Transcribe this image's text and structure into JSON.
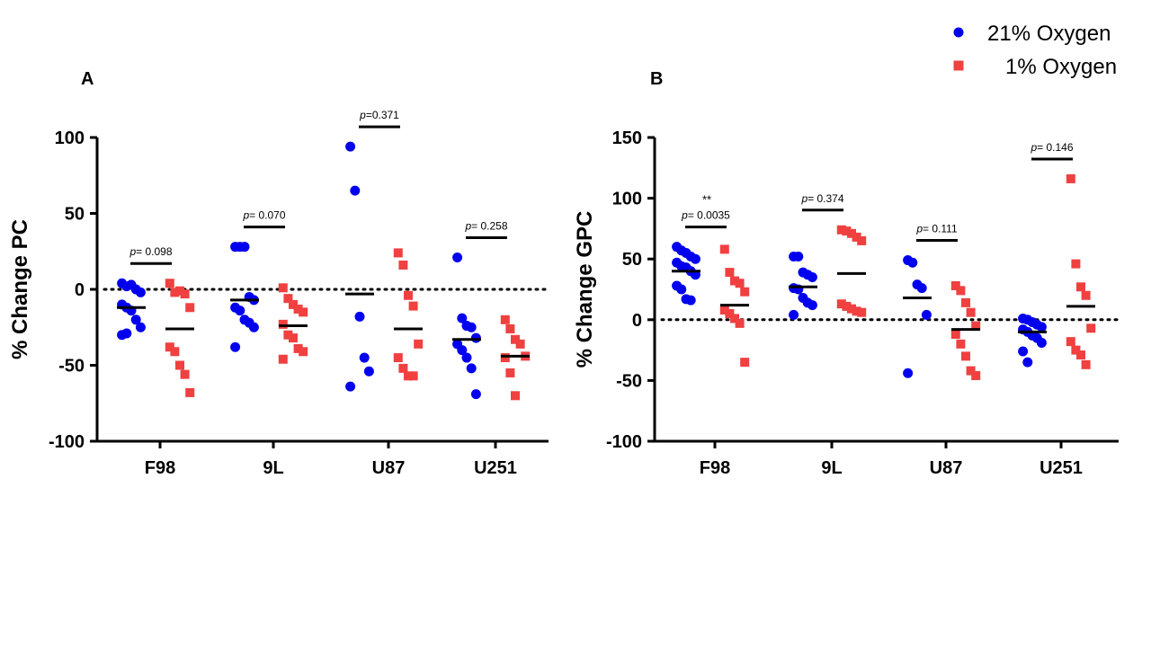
{
  "legend": {
    "series": [
      {
        "name": "21% Oxygen",
        "color": "#0000ee",
        "marker": "circle"
      },
      {
        "name": "1% Oxygen",
        "color": "#f04040",
        "marker": "square"
      }
    ]
  },
  "chart_data": [
    {
      "panel_label": "A",
      "type": "scatter",
      "ylabel": "% Change PC",
      "ylim": [
        -100,
        100
      ],
      "yticks": [
        100,
        50,
        0,
        -50,
        -100
      ],
      "categories": [
        "F98",
        "9L",
        "U87",
        "U251"
      ],
      "reference_line": 0,
      "groups": [
        {
          "category": "F98",
          "oxygen21": {
            "values": [
              4,
              2,
              3,
              0,
              -2,
              -10,
              -12,
              -14,
              -20,
              -25,
              -30,
              -29
            ],
            "mean": -12
          },
          "oxygen1": {
            "values": [
              4,
              -2,
              -1,
              -3,
              -12,
              -38,
              -41,
              -50,
              -56,
              -68
            ],
            "mean": -26
          },
          "p_label": "p= 0.098",
          "stars": ""
        },
        {
          "category": "9L",
          "oxygen21": {
            "values": [
              28,
              28,
              28,
              -5,
              -7,
              -12,
              -14,
              -20,
              -22,
              -25,
              -38
            ],
            "mean": -7
          },
          "oxygen1": {
            "values": [
              1,
              -6,
              -10,
              -13,
              -15,
              -23,
              -30,
              -32,
              -39,
              -41,
              -46
            ],
            "mean": -24
          },
          "p_label": "p= 0.070",
          "stars": ""
        },
        {
          "category": "U87",
          "oxygen21": {
            "values": [
              94,
              65,
              -18,
              -45,
              -54,
              -64
            ],
            "mean": -3
          },
          "oxygen1": {
            "values": [
              24,
              16,
              -4,
              -11,
              -36,
              -45,
              -52,
              -57,
              -57
            ],
            "mean": -26
          },
          "p_label": "p=0.371",
          "stars": ""
        },
        {
          "category": "U251",
          "oxygen21": {
            "values": [
              21,
              -19,
              -24,
              -25,
              -32,
              -36,
              -40,
              -45,
              -52,
              -69
            ],
            "mean": -33
          },
          "oxygen1": {
            "values": [
              -20,
              -26,
              -33,
              -36,
              -44,
              -45,
              -55,
              -70
            ],
            "mean": -44
          },
          "p_label": "p= 0.258",
          "stars": ""
        }
      ]
    },
    {
      "panel_label": "B",
      "type": "scatter",
      "ylabel": "% Change GPC",
      "ylim": [
        -100,
        150
      ],
      "yticks": [
        150,
        100,
        50,
        0,
        -50,
        -100
      ],
      "categories": [
        "F98",
        "9L",
        "U87",
        "U251"
      ],
      "reference_line": 0,
      "groups": [
        {
          "category": "F98",
          "oxygen21": {
            "values": [
              60,
              57,
              55,
              52,
              50,
              47,
              44,
              43,
              40,
              37,
              28,
              25,
              17,
              16
            ],
            "mean": 40
          },
          "oxygen1": {
            "values": [
              58,
              39,
              32,
              30,
              23,
              8,
              5,
              1,
              -3,
              -35
            ],
            "mean": 12
          },
          "p_label": "p= 0.0035",
          "stars": "**"
        },
        {
          "category": "9L",
          "oxygen21": {
            "values": [
              52,
              52,
              39,
              37,
              35,
              26,
              25,
              18,
              14,
              12,
              4
            ],
            "mean": 27
          },
          "oxygen1": {
            "values": [
              74,
              73,
              71,
              68,
              65,
              13,
              11,
              9,
              7,
              6
            ],
            "mean": 38
          },
          "p_label": "p= 0.374",
          "stars": ""
        },
        {
          "category": "U87",
          "oxygen21": {
            "values": [
              49,
              47,
              29,
              26,
              4,
              -44
            ],
            "mean": 18
          },
          "oxygen1": {
            "values": [
              28,
              24,
              14,
              6,
              -5,
              -12,
              -20,
              -30,
              -42,
              -46
            ],
            "mean": -8
          },
          "p_label": "p= 0.111",
          "stars": ""
        },
        {
          "category": "U251",
          "oxygen21": {
            "values": [
              1,
              0,
              -2,
              -4,
              -6,
              -8,
              -10,
              -13,
              -15,
              -19,
              -26,
              -35
            ],
            "mean": -10
          },
          "oxygen1": {
            "values": [
              116,
              46,
              27,
              20,
              -7,
              -18,
              -25,
              -29,
              -37
            ],
            "mean": 11
          },
          "p_label": "p= 0.146",
          "stars": ""
        }
      ]
    }
  ]
}
